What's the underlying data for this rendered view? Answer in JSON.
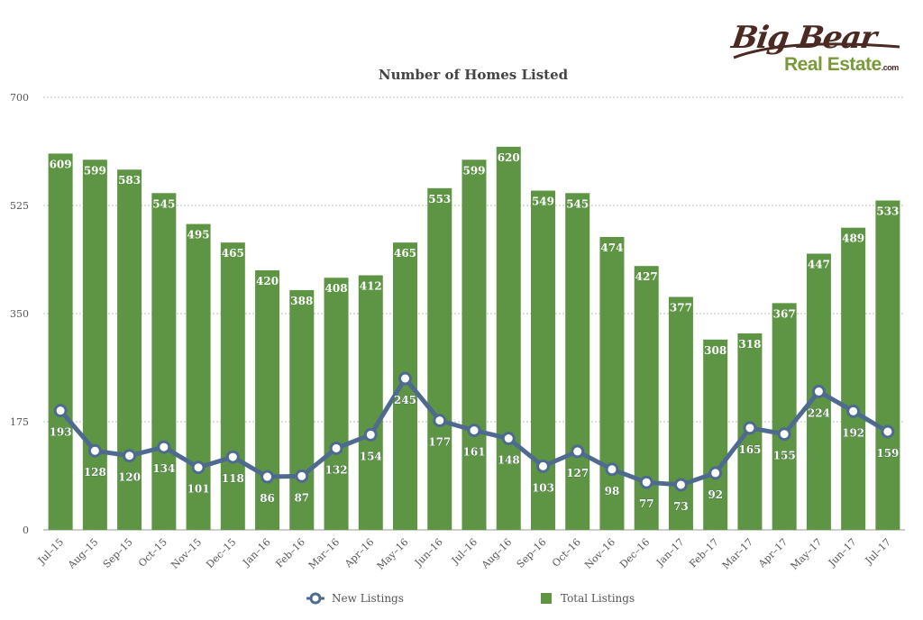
{
  "logo": {
    "line1": "Big Bear",
    "line2": "Real Estate",
    "suffix": ".com"
  },
  "chart_data": {
    "type": "bar",
    "title": "Number of Homes Listed",
    "xlabel": "",
    "ylabel": "",
    "ylim": [
      0,
      700
    ],
    "yticks": [
      0,
      175,
      350,
      525,
      700
    ],
    "grid": true,
    "legend_position": "bottom",
    "categories": [
      "Jul–15",
      "Aug–15",
      "Sep–15",
      "Oct–15",
      "Nov–15",
      "Dec–15",
      "Jan–16",
      "Feb–16",
      "Mar–16",
      "Apr–16",
      "May–16",
      "Jun–16",
      "Jul–16",
      "Aug–16",
      "Sep–16",
      "Oct–16",
      "Nov–16",
      "Dec–16",
      "Jan–17",
      "Feb–17",
      "Mar–17",
      "Apr–17",
      "May–17",
      "Jun–17",
      "Jul–17"
    ],
    "series": [
      {
        "name": "Total Listings",
        "type": "bar",
        "color": "#5e9544",
        "values": [
          609,
          599,
          583,
          545,
          495,
          465,
          420,
          388,
          408,
          412,
          465,
          553,
          599,
          620,
          549,
          545,
          474,
          427,
          377,
          308,
          318,
          367,
          447,
          489,
          533
        ]
      },
      {
        "name": "New Listings",
        "type": "line",
        "color": "#4e6b8f",
        "values": [
          193,
          128,
          120,
          134,
          101,
          118,
          86,
          87,
          132,
          154,
          245,
          177,
          161,
          148,
          103,
          127,
          98,
          77,
          73,
          92,
          165,
          155,
          224,
          192,
          159
        ]
      }
    ]
  }
}
